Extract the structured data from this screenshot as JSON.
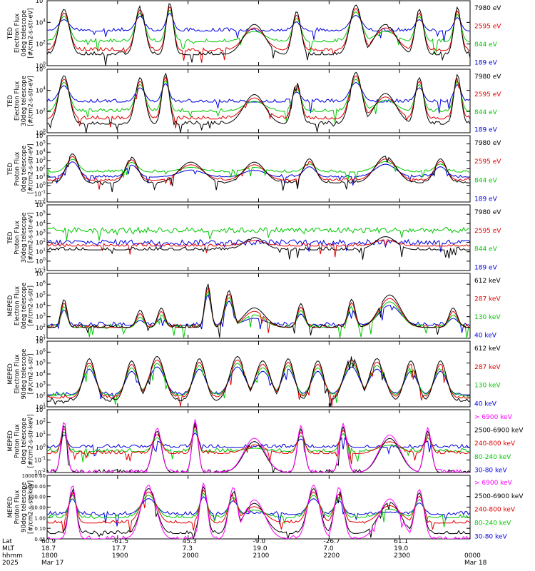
{
  "chart_data": [
    {
      "type": "line",
      "id": "ted-e-0",
      "instrument": "TED",
      "ylabel_lines": [
        "TED",
        "Electron Flux",
        "0deg telescope",
        "[#/cm2-s-str-eV]"
      ],
      "yscale": "log",
      "ylim": [
        1,
        1000000
      ],
      "y_tick_labels": [
        "10^0",
        "10^2",
        "10^4",
        "10^6"
      ],
      "series": [
        {
          "name": "7980 eV",
          "color": "#000000"
        },
        {
          "name": "2595 eV",
          "color": "#e00000"
        },
        {
          "name": "844 eV",
          "color": "#00c800"
        },
        {
          "name": "189 eV",
          "color": "#0000e0"
        }
      ],
      "baseline_log_levels": [
        1.0,
        1.4,
        2.2,
        3.2
      ],
      "bursts": [
        {
          "t": 0.04,
          "w": 0.018,
          "peak": 5.0
        },
        {
          "t": 0.22,
          "w": 0.016,
          "peak": 5.3
        },
        {
          "t": 0.29,
          "w": 0.012,
          "peak": 5.6
        },
        {
          "t": 0.49,
          "w": 0.035,
          "peak": 3.6
        },
        {
          "t": 0.59,
          "w": 0.014,
          "peak": 4.8
        },
        {
          "t": 0.73,
          "w": 0.02,
          "peak": 5.4
        },
        {
          "t": 0.8,
          "w": 0.035,
          "peak": 3.6
        },
        {
          "t": 0.88,
          "w": 0.014,
          "peak": 5.0
        },
        {
          "t": 0.97,
          "w": 0.012,
          "peak": 5.2
        }
      ]
    },
    {
      "type": "line",
      "id": "ted-e-30",
      "instrument": "TED",
      "ylabel_lines": [
        "TED",
        "Electron Flux",
        "30deg telescope",
        "[#/cm2-s-str-eV]"
      ],
      "yscale": "log",
      "ylim": [
        1,
        1000000
      ],
      "y_tick_labels": [
        "10^0",
        "10^2",
        "10^4",
        "10^6"
      ],
      "series": [
        {
          "name": "7980 eV",
          "color": "#000000"
        },
        {
          "name": "2595 eV",
          "color": "#e00000"
        },
        {
          "name": "844 eV",
          "color": "#00c800"
        },
        {
          "name": "189 eV",
          "color": "#0000e0"
        }
      ],
      "baseline_log_levels": [
        0.8,
        1.3,
        2.0,
        2.9
      ],
      "bursts": [
        {
          "t": 0.04,
          "w": 0.018,
          "peak": 5.2
        },
        {
          "t": 0.22,
          "w": 0.016,
          "peak": 5.0
        },
        {
          "t": 0.28,
          "w": 0.012,
          "peak": 5.4
        },
        {
          "t": 0.49,
          "w": 0.035,
          "peak": 3.4
        },
        {
          "t": 0.59,
          "w": 0.014,
          "peak": 4.6
        },
        {
          "t": 0.73,
          "w": 0.02,
          "peak": 5.5
        },
        {
          "t": 0.8,
          "w": 0.035,
          "peak": 3.5
        },
        {
          "t": 0.88,
          "w": 0.014,
          "peak": 5.0
        },
        {
          "t": 0.97,
          "w": 0.012,
          "peak": 5.3
        }
      ]
    },
    {
      "type": "line",
      "id": "ted-p-0",
      "instrument": "TED",
      "ylabel_lines": [
        "TED",
        "Proton Flux",
        "0deg telescope",
        "[#/cm2-s-str-eV]"
      ],
      "yscale": "log",
      "ylim": [
        0.01,
        1000000
      ],
      "y_tick_labels": [
        "10^-2",
        "10^-1",
        "10^0",
        "10^1",
        "10^2",
        "10^3",
        "10^4",
        "10^5",
        "10^6"
      ],
      "series": [
        {
          "name": "7980 eV",
          "color": "#000000"
        },
        {
          "name": "2595 eV",
          "color": "#e00000"
        },
        {
          "name": "844 eV",
          "color": "#00c800"
        },
        {
          "name": "189 eV",
          "color": "#0000e0"
        }
      ],
      "baseline_log_levels": [
        0.3,
        0.6,
        1.6,
        1.0
      ],
      "bursts": [
        {
          "t": 0.06,
          "w": 0.02,
          "peak": 3.6
        },
        {
          "t": 0.2,
          "w": 0.02,
          "peak": 3.2
        },
        {
          "t": 0.34,
          "w": 0.04,
          "peak": 2.6
        },
        {
          "t": 0.49,
          "w": 0.035,
          "peak": 2.6
        },
        {
          "t": 0.62,
          "w": 0.02,
          "peak": 3.0
        },
        {
          "t": 0.8,
          "w": 0.035,
          "peak": 3.3
        },
        {
          "t": 0.93,
          "w": 0.02,
          "peak": 3.0
        }
      ]
    },
    {
      "type": "line",
      "id": "ted-p-30",
      "instrument": "TED",
      "ylabel_lines": [
        "TED",
        "Proton Flux",
        "30deg telescope",
        "[#/cm2-s-str-eV]"
      ],
      "yscale": "log",
      "ylim": [
        0.1,
        1000000
      ],
      "y_tick_labels": [
        "10^-1",
        "10^0",
        "10^1",
        "10^2",
        "10^3",
        "10^4",
        "10^5",
        "10^6"
      ],
      "series": [
        {
          "name": "7980 eV",
          "color": "#000000"
        },
        {
          "name": "2595 eV",
          "color": "#e00000"
        },
        {
          "name": "844 eV",
          "color": "#00c800"
        },
        {
          "name": "189 eV",
          "color": "#0000e0"
        }
      ],
      "baseline_log_levels": [
        1.2,
        1.6,
        3.3,
        2.0
      ],
      "bursts": [
        {
          "t": 0.49,
          "w": 0.035,
          "peak": 2.3
        },
        {
          "t": 0.8,
          "w": 0.035,
          "peak": 2.4
        }
      ]
    },
    {
      "type": "line",
      "id": "meped-e-0",
      "instrument": "MEPED",
      "ylabel_lines": [
        "MEPED",
        "Electron Flux",
        "0deg telescope",
        "[#/cm2-s-str]"
      ],
      "yscale": "log",
      "ylim": [
        10,
        10000000
      ],
      "y_tick_labels": [
        "10^1",
        "10^2",
        "10^3",
        "10^4",
        "10^5",
        "10^6",
        "10^7"
      ],
      "series": [
        {
          "name": "612 keV",
          "color": "#000000"
        },
        {
          "name": "287 keV",
          "color": "#e00000"
        },
        {
          "name": "130 keV",
          "color": "#00c800"
        },
        {
          "name": "40 keV",
          "color": "#0000e0"
        }
      ],
      "baseline_log_levels": [
        2.0,
        2.0,
        2.0,
        2.2
      ],
      "bursts": [
        {
          "t": 0.04,
          "w": 0.01,
          "peak": 4.4
        },
        {
          "t": 0.22,
          "w": 0.012,
          "peak": 3.4
        },
        {
          "t": 0.27,
          "w": 0.012,
          "peak": 3.6
        },
        {
          "t": 0.38,
          "w": 0.01,
          "peak": 5.8
        },
        {
          "t": 0.43,
          "w": 0.014,
          "peak": 5.2
        },
        {
          "t": 0.49,
          "w": 0.035,
          "peak": 3.6
        },
        {
          "t": 0.6,
          "w": 0.012,
          "peak": 4.0
        },
        {
          "t": 0.72,
          "w": 0.012,
          "peak": 4.4
        },
        {
          "t": 0.81,
          "w": 0.035,
          "peak": 4.8
        },
        {
          "t": 0.96,
          "w": 0.014,
          "peak": 3.6
        }
      ]
    },
    {
      "type": "line",
      "id": "meped-e-90",
      "instrument": "MEPED",
      "ylabel_lines": [
        "MEPED",
        "Electron Flux",
        "90deg telescope",
        "[#/cm2-s-str]"
      ],
      "yscale": "log",
      "ylim": [
        10,
        10000000
      ],
      "y_tick_labels": [
        "10^1",
        "10^2",
        "10^3",
        "10^4",
        "10^5",
        "10^6",
        "10^7"
      ],
      "series": [
        {
          "name": "612 keV",
          "color": "#000000"
        },
        {
          "name": "287 keV",
          "color": "#e00000"
        },
        {
          "name": "130 keV",
          "color": "#00c800"
        },
        {
          "name": "40 keV",
          "color": "#0000e0"
        }
      ],
      "baseline_log_levels": [
        1.5,
        1.8,
        2.0,
        2.1
      ],
      "bursts": [
        {
          "t": 0.1,
          "w": 0.02,
          "peak": 5.2
        },
        {
          "t": 0.2,
          "w": 0.02,
          "peak": 5.0
        },
        {
          "t": 0.26,
          "w": 0.025,
          "peak": 5.4
        },
        {
          "t": 0.36,
          "w": 0.02,
          "peak": 5.2
        },
        {
          "t": 0.45,
          "w": 0.025,
          "peak": 5.4
        },
        {
          "t": 0.51,
          "w": 0.025,
          "peak": 5.0
        },
        {
          "t": 0.57,
          "w": 0.02,
          "peak": 5.2
        },
        {
          "t": 0.64,
          "w": 0.02,
          "peak": 5.0
        },
        {
          "t": 0.72,
          "w": 0.025,
          "peak": 5.4
        },
        {
          "t": 0.78,
          "w": 0.025,
          "peak": 5.2
        },
        {
          "t": 0.86,
          "w": 0.02,
          "peak": 5.0
        },
        {
          "t": 0.93,
          "w": 0.02,
          "peak": 5.0
        }
      ]
    },
    {
      "type": "line",
      "id": "meped-p-0",
      "instrument": "MEPED",
      "ylabel_lines": [
        "MEPED",
        "Proton Flux",
        "0deg telescope",
        "[#/cm2-s-str-keV]"
      ],
      "yscale": "log",
      "ylim": [
        0.01,
        10000
      ],
      "y_tick_labels": [
        "10^-2",
        "10^-1",
        "10^0",
        "10^1",
        "10^2",
        "10^3"
      ],
      "series": [
        {
          "name": "> 6900 keV",
          "color": "#ff00ff"
        },
        {
          "name": "2500-6900 keV",
          "color": "#000000"
        },
        {
          "name": "240-800 keV",
          "color": "#e00000"
        },
        {
          "name": "80-240 keV",
          "color": "#00c800"
        },
        {
          "name": "30-80 keV",
          "color": "#0000e0"
        }
      ],
      "baseline_log_levels": [
        -2.0,
        -2.0,
        -0.2,
        0.0,
        0.4
      ],
      "bursts": [
        {
          "t": 0.04,
          "w": 0.01,
          "peak": 2.6
        },
        {
          "t": 0.26,
          "w": 0.015,
          "peak": 2.0
        },
        {
          "t": 0.35,
          "w": 0.01,
          "peak": 2.8
        },
        {
          "t": 0.49,
          "w": 0.035,
          "peak": 1.0
        },
        {
          "t": 0.6,
          "w": 0.012,
          "peak": 2.2
        },
        {
          "t": 0.7,
          "w": 0.012,
          "peak": 2.4
        },
        {
          "t": 0.81,
          "w": 0.035,
          "peak": 1.3
        },
        {
          "t": 0.9,
          "w": 0.012,
          "peak": 2.0
        }
      ]
    },
    {
      "type": "line",
      "id": "meped-p-90",
      "instrument": "MEPED",
      "ylabel_lines": [
        "MEPED",
        "Proton Flux",
        "90deg telescope",
        "[#/cm2-s-str-keV]"
      ],
      "yscale": "log",
      "ylim": [
        0.01,
        10000
      ],
      "y_tick_labels": [
        "0.01",
        "0.10",
        "1.00",
        "10.00",
        "100.00",
        "1000.00",
        "10000.00"
      ],
      "series": [
        {
          "name": "> 6900 keV",
          "color": "#ff00ff"
        },
        {
          "name": "2500-6900 keV",
          "color": "#000000"
        },
        {
          "name": "240-800 keV",
          "color": "#e00000"
        },
        {
          "name": "80-240 keV",
          "color": "#00c800"
        },
        {
          "name": "30-80 keV",
          "color": "#0000e0"
        }
      ],
      "baseline_log_levels": [
        -2.0,
        -1.5,
        -0.5,
        0.0,
        0.3
      ],
      "bursts": [
        {
          "t": 0.06,
          "w": 0.012,
          "peak": 2.8
        },
        {
          "t": 0.24,
          "w": 0.025,
          "peak": 2.8
        },
        {
          "t": 0.37,
          "w": 0.012,
          "peak": 3.0
        },
        {
          "t": 0.44,
          "w": 0.015,
          "peak": 2.6
        },
        {
          "t": 0.49,
          "w": 0.035,
          "peak": 1.4
        },
        {
          "t": 0.63,
          "w": 0.02,
          "peak": 2.8
        },
        {
          "t": 0.69,
          "w": 0.015,
          "peak": 2.6
        },
        {
          "t": 0.81,
          "w": 0.035,
          "peak": 1.5
        },
        {
          "t": 0.88,
          "w": 0.015,
          "peak": 2.4
        }
      ]
    }
  ],
  "x_axis": {
    "row_labels": [
      "Lat",
      "MLT",
      "hhmm",
      "2025"
    ],
    "ticks": [
      {
        "t": 0.0,
        "lat": "60.9",
        "mlt": "18.7",
        "hhmm": "1800",
        "date": "Mar 17"
      },
      {
        "t": 0.1667,
        "lat": "-61.5",
        "mlt": "17.7",
        "hhmm": "1900",
        "date": ""
      },
      {
        "t": 0.3333,
        "lat": "45.3",
        "mlt": "7.3",
        "hhmm": "2000",
        "date": ""
      },
      {
        "t": 0.5,
        "lat": "-9.0",
        "mlt": "19.0",
        "hhmm": "2100",
        "date": ""
      },
      {
        "t": 0.6667,
        "lat": "-26.7",
        "mlt": "7.0",
        "hhmm": "2200",
        "date": ""
      },
      {
        "t": 0.8333,
        "lat": "61.1",
        "mlt": "19.0",
        "hhmm": "2300",
        "date": ""
      },
      {
        "t": 1.0,
        "lat": "",
        "mlt": "",
        "hhmm": "0000",
        "date": "Mar 18"
      }
    ]
  }
}
